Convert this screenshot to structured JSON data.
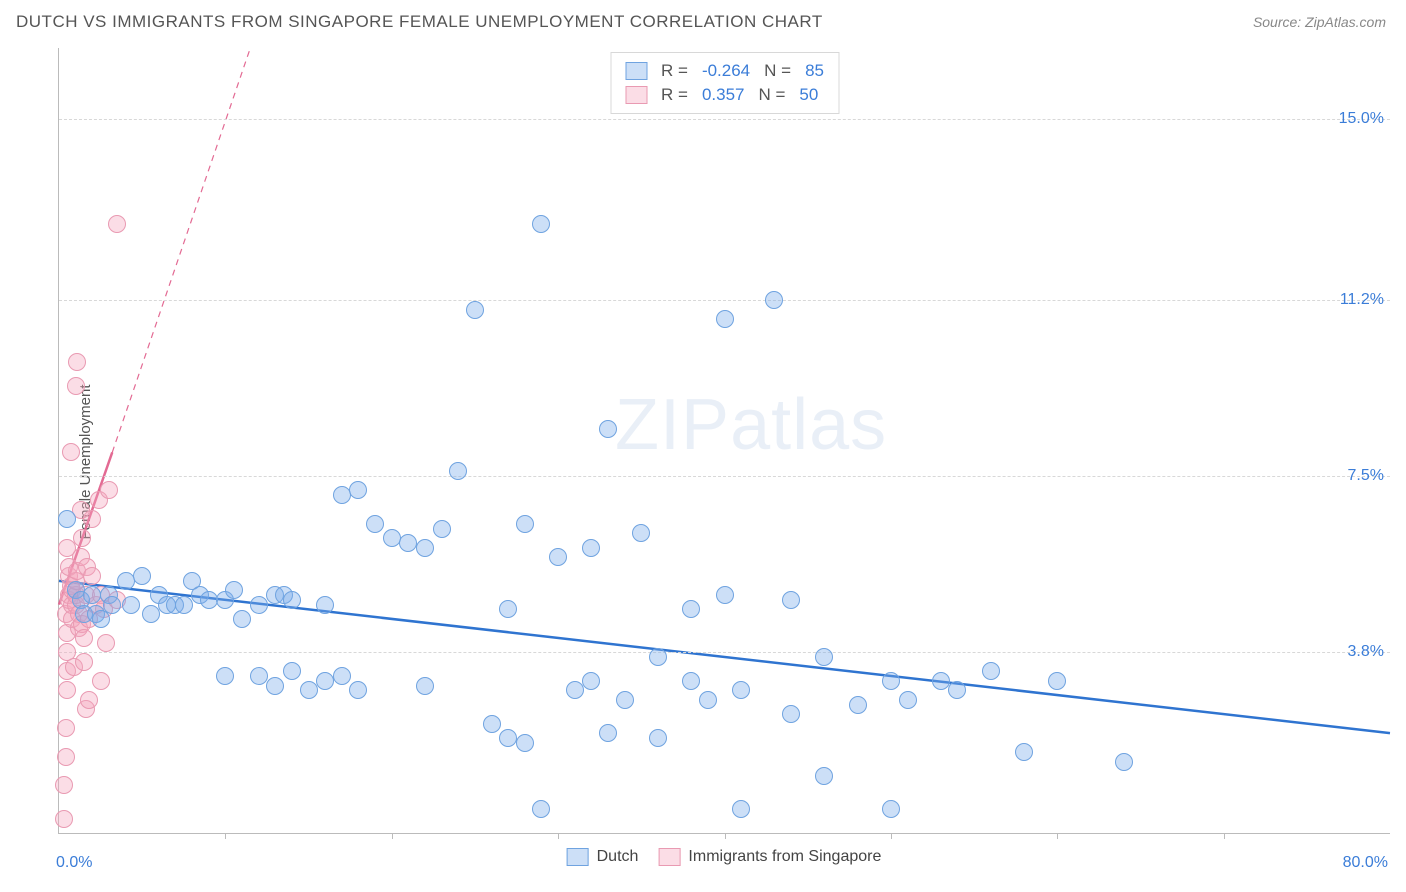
{
  "header": {
    "title": "DUTCH VS IMMIGRANTS FROM SINGAPORE FEMALE UNEMPLOYMENT CORRELATION CHART",
    "source": "Source: ZipAtlas.com"
  },
  "ylabel": "Female Unemployment",
  "watermark": {
    "bold": "ZIP",
    "light": "atlas"
  },
  "axes": {
    "xmin": 0,
    "xmax": 80,
    "ymin": 0,
    "ymax": 16.5,
    "x0_label": "0.0%",
    "x1_label": "80.0%",
    "yticks": [
      {
        "v": 3.8,
        "label": "3.8%"
      },
      {
        "v": 7.5,
        "label": "7.5%"
      },
      {
        "v": 11.2,
        "label": "11.2%"
      },
      {
        "v": 15.0,
        "label": "15.0%"
      }
    ],
    "xticks": [
      10,
      20,
      30,
      40,
      50,
      60,
      70
    ],
    "grid_color": "#d8d8d8",
    "axis_color": "#bbbbbb",
    "tick_label_color": "#3b7dd8",
    "tick_fontsize": 16
  },
  "series": {
    "dutch": {
      "label": "Dutch",
      "fill": "rgba(120,170,235,0.38)",
      "stroke": "#6fa3e0",
      "marker_radius": 9,
      "R": "-0.264",
      "N": "85",
      "trend": {
        "x1": 0,
        "y1": 5.3,
        "x2": 80,
        "y2": 2.1,
        "stroke": "#2f74d0",
        "width": 2.5,
        "dash": ""
      },
      "points": [
        [
          0.5,
          6.6
        ],
        [
          1.0,
          5.1
        ],
        [
          1.3,
          4.9
        ],
        [
          1.5,
          4.6
        ],
        [
          2.0,
          5.0
        ],
        [
          2.2,
          4.6
        ],
        [
          2.5,
          4.5
        ],
        [
          3.0,
          5.0
        ],
        [
          3.2,
          4.8
        ],
        [
          4.0,
          5.3
        ],
        [
          4.3,
          4.8
        ],
        [
          5.0,
          5.4
        ],
        [
          5.5,
          4.6
        ],
        [
          6.0,
          5.0
        ],
        [
          6.5,
          4.8
        ],
        [
          7.0,
          4.8
        ],
        [
          7.5,
          4.8
        ],
        [
          8.0,
          5.3
        ],
        [
          8.5,
          5.0
        ],
        [
          9.0,
          4.9
        ],
        [
          10,
          4.9
        ],
        [
          10.5,
          5.1
        ],
        [
          11,
          4.5
        ],
        [
          12,
          4.8
        ],
        [
          13,
          5.0
        ],
        [
          13.5,
          5.0
        ],
        [
          14,
          4.9
        ],
        [
          10,
          3.3
        ],
        [
          12,
          3.3
        ],
        [
          13,
          3.1
        ],
        [
          14,
          3.4
        ],
        [
          15,
          3.0
        ],
        [
          16,
          3.2
        ],
        [
          17,
          3.3
        ],
        [
          18,
          3.0
        ],
        [
          17,
          7.1
        ],
        [
          18,
          7.2
        ],
        [
          19,
          6.5
        ],
        [
          20,
          6.2
        ],
        [
          21,
          6.1
        ],
        [
          22,
          6.0
        ],
        [
          23,
          6.4
        ],
        [
          16,
          4.8
        ],
        [
          26,
          2.3
        ],
        [
          27,
          2.0
        ],
        [
          28,
          1.9
        ],
        [
          22,
          3.1
        ],
        [
          24,
          7.6
        ],
        [
          25,
          11.0
        ],
        [
          27,
          4.7
        ],
        [
          28,
          6.5
        ],
        [
          29,
          0.5
        ],
        [
          29,
          12.8
        ],
        [
          30,
          5.8
        ],
        [
          31,
          3.0
        ],
        [
          32,
          3.2
        ],
        [
          32,
          6.0
        ],
        [
          33,
          2.1
        ],
        [
          33,
          8.5
        ],
        [
          34,
          2.8
        ],
        [
          35,
          6.3
        ],
        [
          36,
          2.0
        ],
        [
          36,
          3.7
        ],
        [
          38,
          4.7
        ],
        [
          38,
          3.2
        ],
        [
          39,
          2.8
        ],
        [
          40,
          10.8
        ],
        [
          40,
          5.0
        ],
        [
          41,
          3.0
        ],
        [
          41,
          0.5
        ],
        [
          43,
          11.2
        ],
        [
          44,
          4.9
        ],
        [
          44,
          2.5
        ],
        [
          46,
          3.7
        ],
        [
          46,
          1.2
        ],
        [
          48,
          2.7
        ],
        [
          50,
          3.2
        ],
        [
          50,
          0.5
        ],
        [
          51,
          2.8
        ],
        [
          53,
          3.2
        ],
        [
          54,
          3.0
        ],
        [
          56,
          3.4
        ],
        [
          58,
          1.7
        ],
        [
          60,
          3.2
        ],
        [
          64,
          1.5
        ]
      ]
    },
    "immigrants": {
      "label": "Immigrants from Singapore",
      "fill": "rgba(245,165,190,0.38)",
      "stroke": "#e99ab2",
      "marker_radius": 9,
      "R": "0.357",
      "N": "50",
      "trend_solid": {
        "x1": 0,
        "y1": 4.8,
        "x2": 3.2,
        "y2": 8.0,
        "stroke": "#e36a93",
        "width": 2.5
      },
      "trend_dash": {
        "x1": 3.2,
        "y1": 8.0,
        "x2": 11.5,
        "y2": 16.5,
        "stroke": "#e36a93",
        "width": 1.2,
        "dash": "6 5"
      },
      "points": [
        [
          0.3,
          0.3
        ],
        [
          0.3,
          1.0
        ],
        [
          0.4,
          1.6
        ],
        [
          0.5,
          3.0
        ],
        [
          0.5,
          3.4
        ],
        [
          0.5,
          3.8
        ],
        [
          0.5,
          4.2
        ],
        [
          0.4,
          4.6
        ],
        [
          0.6,
          4.9
        ],
        [
          0.6,
          5.0
        ],
        [
          0.7,
          5.2
        ],
        [
          0.6,
          5.4
        ],
        [
          0.6,
          5.6
        ],
        [
          0.8,
          4.5
        ],
        [
          0.8,
          4.8
        ],
        [
          0.8,
          5.1
        ],
        [
          1.0,
          4.8
        ],
        [
          1.0,
          5.0
        ],
        [
          1.0,
          5.3
        ],
        [
          1.1,
          5.5
        ],
        [
          1.2,
          4.3
        ],
        [
          1.2,
          4.6
        ],
        [
          1.3,
          5.8
        ],
        [
          1.4,
          4.4
        ],
        [
          1.4,
          6.2
        ],
        [
          1.5,
          4.1
        ],
        [
          1.6,
          5.0
        ],
        [
          1.6,
          2.6
        ],
        [
          1.7,
          5.6
        ],
        [
          1.8,
          4.5
        ],
        [
          2.0,
          5.4
        ],
        [
          2.0,
          6.6
        ],
        [
          2.2,
          4.8
        ],
        [
          2.4,
          7.0
        ],
        [
          2.5,
          5.0
        ],
        [
          2.7,
          4.7
        ],
        [
          3.0,
          7.2
        ],
        [
          3.5,
          4.9
        ],
        [
          0.4,
          2.2
        ],
        [
          0.7,
          8.0
        ],
        [
          1.0,
          9.4
        ],
        [
          1.1,
          9.9
        ],
        [
          1.3,
          6.8
        ],
        [
          0.5,
          6.0
        ],
        [
          1.8,
          2.8
        ],
        [
          2.5,
          3.2
        ],
        [
          2.8,
          4.0
        ],
        [
          3.5,
          12.8
        ],
        [
          0.9,
          3.5
        ],
        [
          1.5,
          3.6
        ]
      ]
    }
  },
  "legend_top": {
    "r_label": "R =",
    "n_label": "N ="
  },
  "legend_bottom": {
    "items": [
      "dutch",
      "immigrants"
    ]
  },
  "background_color": "#ffffff"
}
